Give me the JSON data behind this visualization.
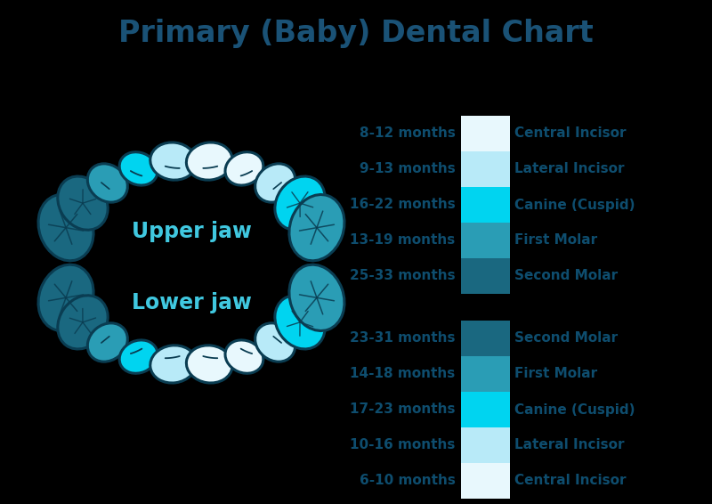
{
  "title": "Primary (Baby) Dental Chart",
  "title_color": "#1a5276",
  "title_fontsize": 24,
  "background_color": "#000000",
  "upper_label": "Upper jaw",
  "lower_label": "Lower jaw",
  "label_color": "#40c8e0",
  "label_fontsize": 17,
  "legend_text_color": "#0e4d6e",
  "legend_fontsize": 11,
  "upper_legend": [
    {
      "label": "8-12 months",
      "name": "Central Incisor",
      "color": "#e8f8fd"
    },
    {
      "label": "9-13 months",
      "name": "Lateral Incisor",
      "color": "#b8eaf8"
    },
    {
      "label": "16-22 months",
      "name": "Canine (Cuspid)",
      "color": "#00d4f0"
    },
    {
      "label": "13-19 months",
      "name": "First Molar",
      "color": "#2a9db5"
    },
    {
      "label": "25-33 months",
      "name": "Second Molar",
      "color": "#1a6880"
    }
  ],
  "lower_legend": [
    {
      "label": "23-31 months",
      "name": "Second Molar",
      "color": "#1a6880"
    },
    {
      "label": "14-18 months",
      "name": "First Molar",
      "color": "#2a9db5"
    },
    {
      "label": "17-23 months",
      "name": "Canine (Cuspid)",
      "color": "#00d4f0"
    },
    {
      "label": "10-16 months",
      "name": "Lateral Incisor",
      "color": "#b8eaf8"
    },
    {
      "label": "6-10 months",
      "name": "Central Incisor",
      "color": "#e8f8fd"
    }
  ],
  "tooth_outline_color": "#0a3d52",
  "upper_teeth_colors": [
    "#1a6880",
    "#1a6880",
    "#2a9db5",
    "#00d4f0",
    "#b8eaf8",
    "#e8f8fd",
    "#e8f8fd",
    "#b8eaf8",
    "#00d4f0",
    "#2a9db5",
    "#1a6880",
    "#1a6880"
  ],
  "lower_teeth_colors": [
    "#1a6880",
    "#1a6880",
    "#2a9db5",
    "#00d4f0",
    "#b8eaf8",
    "#e8f8fd",
    "#e8f8fd",
    "#b8eaf8",
    "#00d4f0",
    "#2a9db5",
    "#1a6880",
    "#1a6880"
  ]
}
